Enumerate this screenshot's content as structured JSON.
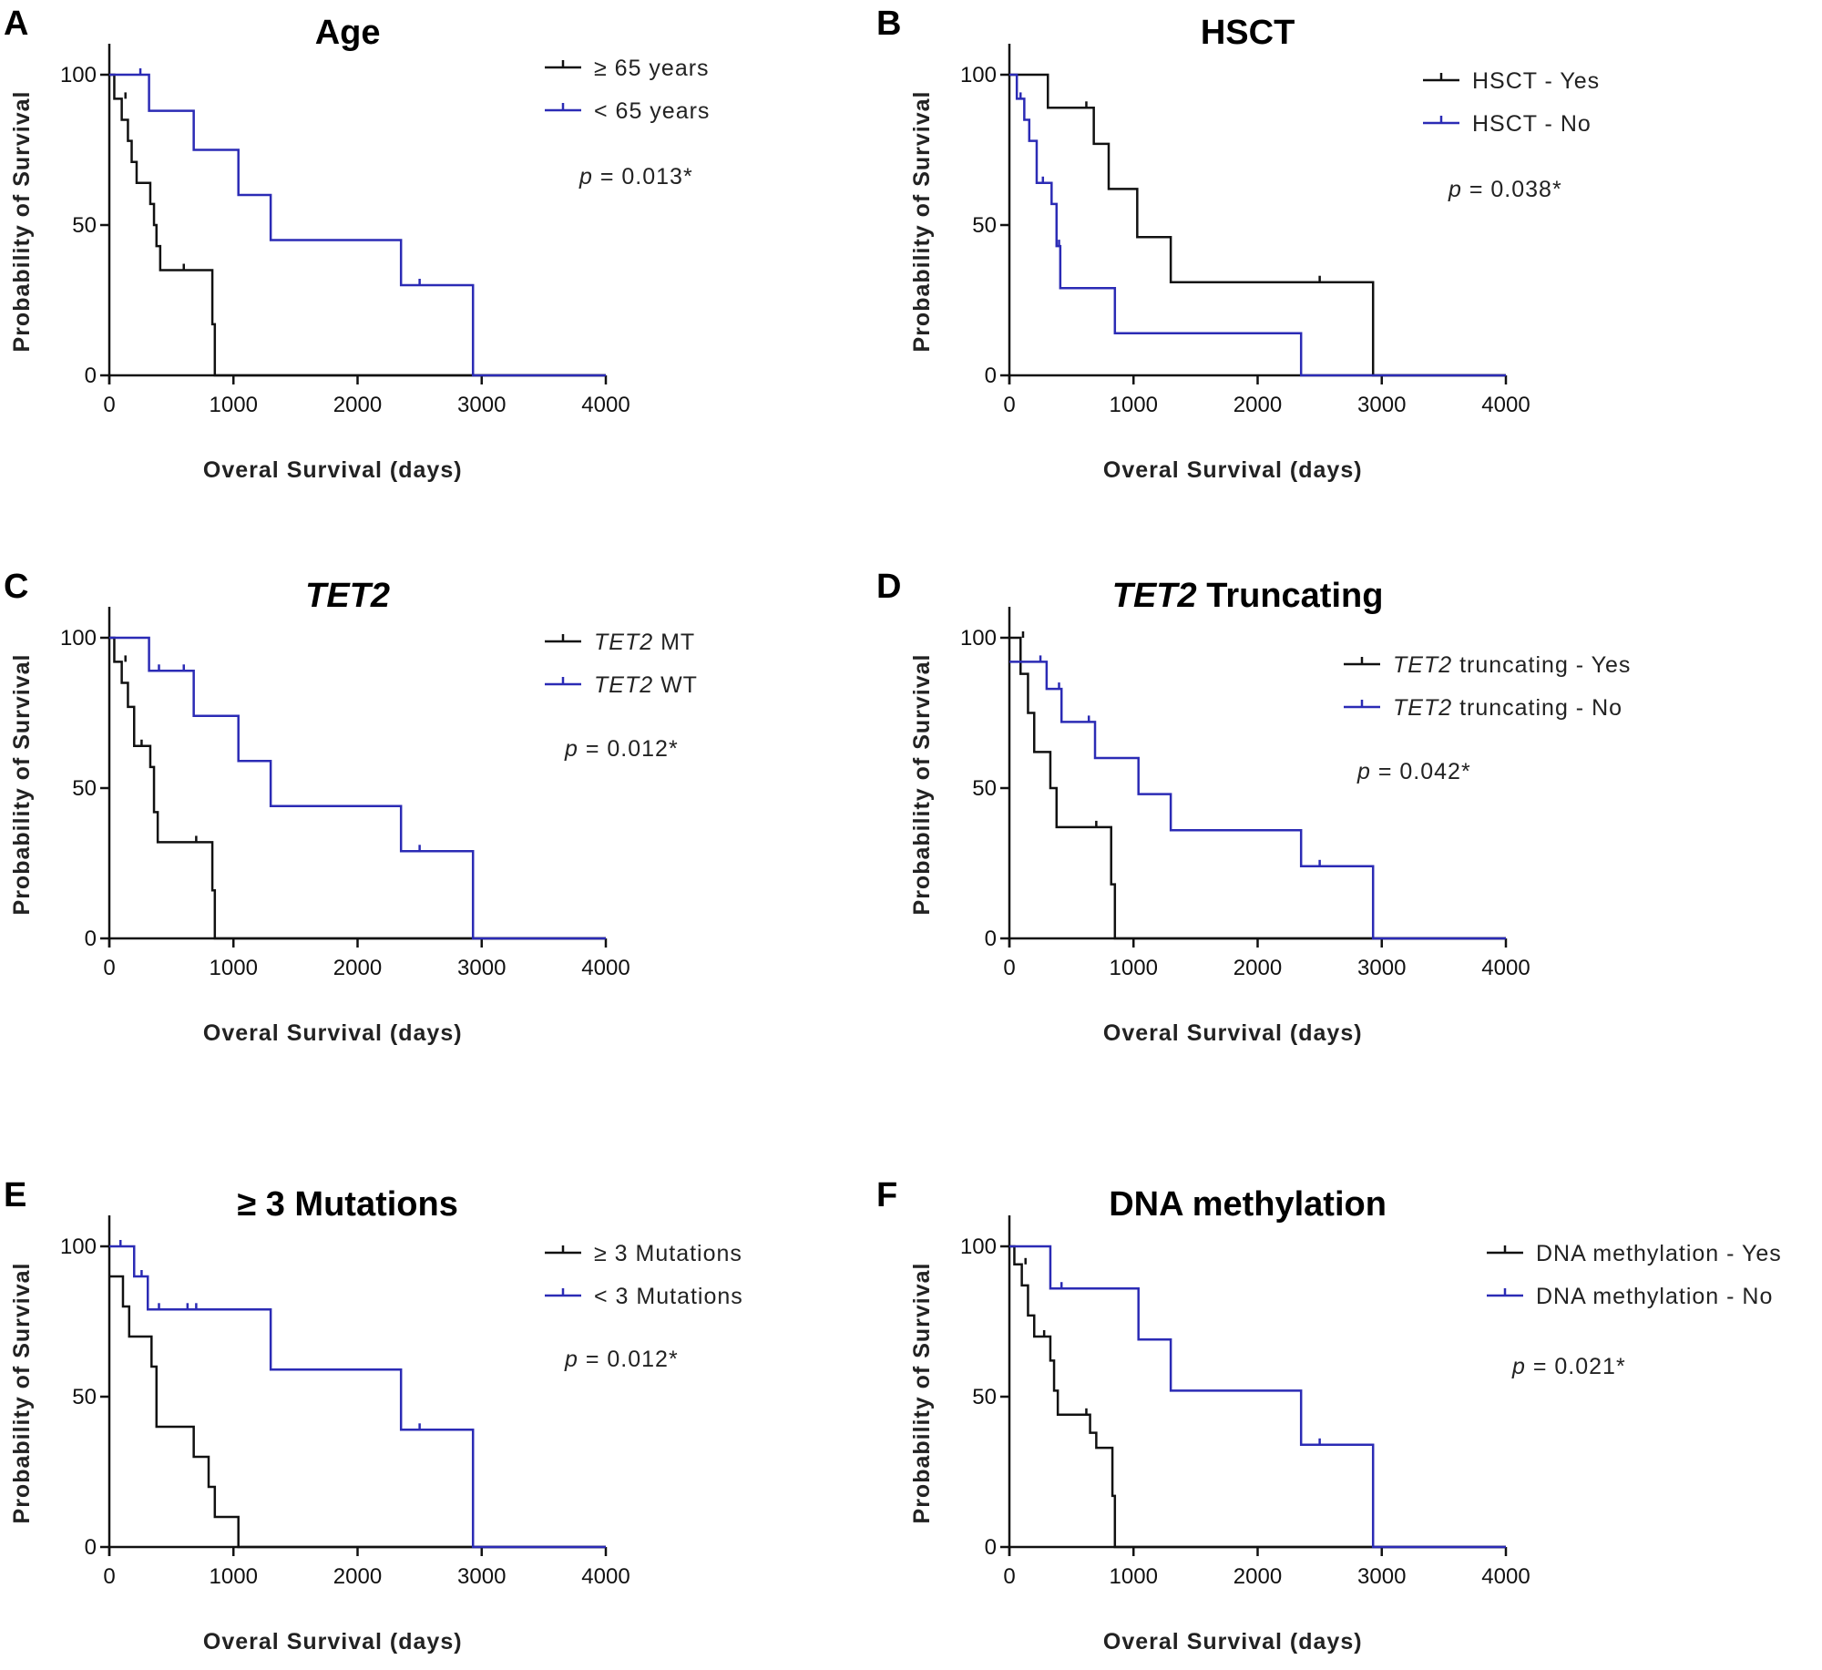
{
  "colors": {
    "black_series": "#111111",
    "blue_series": "#2b2bb5",
    "axis": "#111111"
  },
  "chart_data": [
    {
      "type": "line",
      "letter": "A",
      "title": [
        {
          "text": "Age",
          "italic": false
        }
      ],
      "xlabel": "Overal Survival (days)",
      "ylabel": "Probability of Survival",
      "xlim": [
        0,
        4000
      ],
      "ylim": [
        0,
        100
      ],
      "xticks": [
        "0",
        "1000",
        "2000",
        "3000",
        "4000"
      ],
      "yticks": [
        "0",
        "50",
        "100"
      ],
      "legend_position": "top-right",
      "p_value": "p = 0.013*",
      "series": [
        {
          "name": "≥ 65 years",
          "color": "black",
          "x": [
            0,
            40,
            100,
            150,
            180,
            220,
            330,
            360,
            380,
            410,
            830,
            850
          ],
          "y": [
            100,
            92,
            85,
            78,
            71,
            64,
            57,
            50,
            43,
            35,
            17,
            0
          ],
          "censored": [
            [
              130,
              92
            ],
            [
              600,
              35
            ]
          ]
        },
        {
          "name": "< 65 years",
          "color": "blue",
          "x": [
            0,
            320,
            680,
            1040,
            1300,
            2350,
            2930
          ],
          "y": [
            100,
            88,
            75,
            60,
            45,
            30,
            0
          ],
          "censored": [
            [
              250,
              100
            ],
            [
              2500,
              30
            ]
          ]
        }
      ]
    },
    {
      "type": "line",
      "letter": "B",
      "title": [
        {
          "text": "HSCT",
          "italic": false
        }
      ],
      "xlabel": "Overal Survival (days)",
      "ylabel": "Probability of Survival",
      "xlim": [
        0,
        4000
      ],
      "ylim": [
        0,
        100
      ],
      "xticks": [
        "0",
        "1000",
        "2000",
        "3000",
        "4000"
      ],
      "yticks": [
        "0",
        "50",
        "100"
      ],
      "legend_position": "top-right",
      "p_value": "p = 0.038*",
      "series": [
        {
          "name": "HSCT - Yes",
          "color": "black",
          "x": [
            0,
            310,
            680,
            800,
            1030,
            1300,
            2930
          ],
          "y": [
            100,
            89,
            77,
            62,
            46,
            31,
            0
          ],
          "censored": [
            [
              620,
              89
            ],
            [
              2500,
              31
            ]
          ]
        },
        {
          "name": "HSCT - No",
          "color": "blue",
          "x": [
            0,
            60,
            120,
            160,
            220,
            340,
            380,
            410,
            850,
            2350
          ],
          "y": [
            100,
            92,
            85,
            78,
            64,
            57,
            43,
            29,
            14,
            0
          ],
          "censored": [
            [
              90,
              92
            ],
            [
              270,
              64
            ],
            [
              400,
              43
            ]
          ]
        }
      ]
    },
    {
      "type": "line",
      "letter": "C",
      "title": [
        {
          "text": "TET2",
          "italic": true
        }
      ],
      "xlabel": "Overal Survival (days)",
      "ylabel": "Probability of Survival",
      "xlim": [
        0,
        4000
      ],
      "ylim": [
        0,
        100
      ],
      "xticks": [
        "0",
        "1000",
        "2000",
        "3000",
        "4000"
      ],
      "yticks": [
        "0",
        "50",
        "100"
      ],
      "legend_position": "top-right",
      "p_value": "p = 0.012*",
      "series": [
        {
          "name": "TET2 MT",
          "color": "black",
          "name_parts": [
            {
              "text": "TET2",
              "italic": true
            },
            {
              "text": " MT",
              "italic": false
            }
          ],
          "x": [
            0,
            40,
            100,
            150,
            200,
            330,
            360,
            390,
            830,
            850
          ],
          "y": [
            100,
            92,
            85,
            77,
            64,
            57,
            42,
            32,
            16,
            0
          ],
          "censored": [
            [
              130,
              92
            ],
            [
              260,
              64
            ],
            [
              700,
              32
            ]
          ]
        },
        {
          "name": "TET2 WT",
          "color": "blue",
          "name_parts": [
            {
              "text": "TET2",
              "italic": true
            },
            {
              "text": " WT",
              "italic": false
            }
          ],
          "x": [
            0,
            320,
            680,
            1040,
            1300,
            2350,
            2930
          ],
          "y": [
            100,
            89,
            74,
            59,
            44,
            29,
            0
          ],
          "censored": [
            [
              400,
              89
            ],
            [
              600,
              89
            ],
            [
              2500,
              29
            ]
          ]
        }
      ]
    },
    {
      "type": "line",
      "letter": "D",
      "title": [
        {
          "text": "TET2",
          "italic": true
        },
        {
          "text": " Truncating",
          "italic": false
        }
      ],
      "xlabel": "Overal Survival (days)",
      "ylabel": "Probability of Survival",
      "xlim": [
        0,
        4000
      ],
      "ylim": [
        0,
        100
      ],
      "xticks": [
        "0",
        "1000",
        "2000",
        "3000",
        "4000"
      ],
      "yticks": [
        "0",
        "50",
        "100"
      ],
      "legend_position": "top-right",
      "p_value": "p = 0.042*",
      "series": [
        {
          "name": "TET2 truncating - Yes",
          "color": "black",
          "name_parts": [
            {
              "text": "TET2",
              "italic": true
            },
            {
              "text": " truncating - Yes",
              "italic": false
            }
          ],
          "x": [
            0,
            90,
            150,
            200,
            330,
            380,
            820,
            850
          ],
          "y": [
            100,
            88,
            75,
            62,
            50,
            37,
            18,
            0
          ],
          "censored": [
            [
              110,
              100
            ],
            [
              700,
              37
            ]
          ]
        },
        {
          "name": "TET2 truncating - No",
          "color": "blue",
          "name_parts": [
            {
              "text": "TET2",
              "italic": true
            },
            {
              "text": " truncating - No",
              "italic": false
            }
          ],
          "x": [
            0,
            300,
            420,
            690,
            1040,
            1300,
            2350,
            2930
          ],
          "y": [
            92,
            83,
            72,
            60,
            48,
            36,
            24,
            0
          ],
          "censored": [
            [
              250,
              92
            ],
            [
              400,
              83
            ],
            [
              640,
              72
            ],
            [
              2500,
              24
            ]
          ]
        }
      ]
    },
    {
      "type": "line",
      "letter": "E",
      "title": [
        {
          "text": "≥ 3 Mutations",
          "italic": false
        }
      ],
      "xlabel": "Overal Survival (days)",
      "ylabel": "Probability of Survival",
      "xlim": [
        0,
        4000
      ],
      "ylim": [
        0,
        100
      ],
      "xticks": [
        "0",
        "1000",
        "2000",
        "3000",
        "4000"
      ],
      "yticks": [
        "0",
        "50",
        "100"
      ],
      "legend_position": "top-right",
      "p_value": "p = 0.012*",
      "series": [
        {
          "name": "≥ 3 Mutations",
          "color": "black",
          "x": [
            0,
            110,
            160,
            340,
            380,
            680,
            800,
            850,
            1040
          ],
          "y": [
            90,
            80,
            70,
            60,
            40,
            30,
            20,
            10,
            0
          ],
          "censored": []
        },
        {
          "name": "< 3 Mutations",
          "color": "blue",
          "x": [
            0,
            200,
            310,
            1300,
            2350,
            2930
          ],
          "y": [
            100,
            90,
            79,
            59,
            39,
            0
          ],
          "censored": [
            [
              90,
              100
            ],
            [
              260,
              90
            ],
            [
              400,
              79
            ],
            [
              630,
              79
            ],
            [
              700,
              79
            ],
            [
              2500,
              39
            ]
          ]
        }
      ]
    },
    {
      "type": "line",
      "letter": "F",
      "title": [
        {
          "text": "DNA  methylation",
          "italic": false
        }
      ],
      "xlabel": "Overal Survival (days)",
      "ylabel": "Probability of Survival",
      "xlim": [
        0,
        4000
      ],
      "ylim": [
        0,
        100
      ],
      "xticks": [
        "0",
        "1000",
        "2000",
        "3000",
        "4000"
      ],
      "yticks": [
        "0",
        "50",
        "100"
      ],
      "legend_position": "top-right",
      "p_value": "p = 0.021*",
      "series": [
        {
          "name": "DNA methylation - Yes",
          "color": "black",
          "x": [
            0,
            40,
            100,
            150,
            200,
            330,
            360,
            390,
            650,
            700,
            830,
            850
          ],
          "y": [
            100,
            94,
            87,
            77,
            70,
            62,
            52,
            44,
            38,
            33,
            17,
            0
          ],
          "censored": [
            [
              130,
              94
            ],
            [
              280,
              70
            ],
            [
              620,
              44
            ]
          ]
        },
        {
          "name": "DNA methylation - No",
          "color": "blue",
          "x": [
            0,
            330,
            1040,
            1300,
            2350,
            2930
          ],
          "y": [
            100,
            86,
            69,
            52,
            34,
            0
          ],
          "censored": [
            [
              420,
              86
            ],
            [
              2500,
              34
            ]
          ]
        }
      ]
    }
  ]
}
